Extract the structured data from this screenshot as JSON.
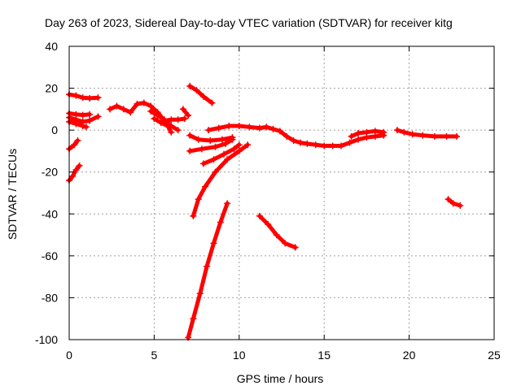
{
  "chart_data": {
    "type": "scatter",
    "title": "Day 263 of 2023, Sidereal Day-to-day VTEC variation (SDTVAR) for receiver kitg",
    "xlabel": "GPS time / hours",
    "ylabel": "SDTVAR / TECUs",
    "xlim": [
      0,
      25
    ],
    "ylim": [
      -100,
      40
    ],
    "xticks": [
      0,
      5,
      10,
      15,
      20,
      25
    ],
    "yticks": [
      -100,
      -80,
      -60,
      -40,
      -20,
      0,
      20,
      40
    ],
    "grid": true,
    "marker": "plus",
    "color": "#ff0000",
    "series": [
      {
        "points": [
          [
            0.0,
            17
          ],
          [
            0.4,
            16.5
          ],
          [
            0.8,
            15.5
          ],
          [
            1.2,
            15.2
          ],
          [
            1.7,
            15.5
          ]
        ]
      },
      {
        "points": [
          [
            0.0,
            8
          ],
          [
            0.4,
            7.5
          ],
          [
            0.8,
            7.2
          ],
          [
            1.2,
            7.5
          ]
        ]
      },
      {
        "points": [
          [
            0.0,
            6
          ],
          [
            0.4,
            5
          ],
          [
            0.8,
            4
          ],
          [
            1.2,
            4.5
          ],
          [
            1.7,
            6.5
          ]
        ]
      },
      {
        "points": [
          [
            0.0,
            4
          ],
          [
            0.4,
            3
          ],
          [
            0.8,
            2
          ],
          [
            1.0,
            1.5
          ]
        ]
      },
      {
        "points": [
          [
            0.0,
            -9
          ],
          [
            0.3,
            -7
          ],
          [
            0.5,
            -5
          ]
        ]
      },
      {
        "points": [
          [
            0.0,
            -24
          ],
          [
            0.2,
            -22
          ],
          [
            0.4,
            -19
          ],
          [
            0.6,
            -17
          ]
        ]
      },
      {
        "points": [
          [
            2.4,
            10
          ],
          [
            2.8,
            11.5
          ],
          [
            3.2,
            10
          ],
          [
            3.6,
            8.5
          ],
          [
            4.0,
            12.5
          ],
          [
            4.4,
            13
          ],
          [
            4.8,
            11.5
          ],
          [
            5.2,
            8.5
          ],
          [
            5.6,
            4.5
          ],
          [
            6.0,
            5
          ],
          [
            6.4,
            5
          ],
          [
            6.8,
            5.5
          ]
        ]
      },
      {
        "points": [
          [
            4.8,
            9
          ],
          [
            5.2,
            7
          ],
          [
            5.6,
            5
          ],
          [
            6.0,
            2
          ],
          [
            6.4,
            0
          ]
        ]
      },
      {
        "points": [
          [
            5.0,
            5.5
          ],
          [
            5.4,
            3.5
          ],
          [
            5.8,
            2
          ],
          [
            6.0,
            -1
          ]
        ]
      },
      {
        "points": [
          [
            6.7,
            10
          ],
          [
            7.0,
            7
          ]
        ]
      },
      {
        "points": [
          [
            7.1,
            21
          ],
          [
            7.5,
            19
          ],
          [
            7.9,
            16
          ],
          [
            8.4,
            13
          ]
        ]
      },
      {
        "points": [
          [
            7.1,
            -2.5
          ],
          [
            7.6,
            -4.5
          ],
          [
            8.3,
            -5
          ],
          [
            9.0,
            -4.5
          ],
          [
            9.6,
            -3.5
          ]
        ]
      },
      {
        "points": [
          [
            7.1,
            -10
          ],
          [
            7.8,
            -9
          ],
          [
            8.6,
            -8
          ],
          [
            9.2,
            -6.5
          ],
          [
            9.6,
            -4.5
          ]
        ]
      },
      {
        "points": [
          [
            7.9,
            -16
          ],
          [
            8.5,
            -14
          ],
          [
            9.1,
            -11.5
          ],
          [
            9.7,
            -9
          ],
          [
            10.0,
            -7
          ]
        ]
      },
      {
        "points": [
          [
            7.3,
            -41
          ],
          [
            7.6,
            -33
          ],
          [
            8.0,
            -27
          ],
          [
            8.6,
            -20
          ],
          [
            9.3,
            -14
          ],
          [
            10.0,
            -10
          ],
          [
            10.5,
            -7
          ]
        ]
      },
      {
        "points": [
          [
            7.0,
            -99
          ],
          [
            7.3,
            -90
          ],
          [
            7.7,
            -78
          ],
          [
            8.1,
            -65
          ],
          [
            8.5,
            -54
          ],
          [
            8.9,
            -44
          ],
          [
            9.3,
            -35
          ]
        ]
      },
      {
        "points": [
          [
            8.2,
            0
          ],
          [
            8.8,
            1
          ],
          [
            9.4,
            2
          ],
          [
            10.0,
            2
          ],
          [
            10.6,
            1.5
          ],
          [
            11.2,
            1
          ],
          [
            11.6,
            1.5
          ],
          [
            12.0,
            0.5
          ],
          [
            12.4,
            -0.5
          ],
          [
            12.8,
            -3
          ],
          [
            13.2,
            -5
          ],
          [
            13.6,
            -6
          ],
          [
            14.0,
            -6.5
          ],
          [
            14.5,
            -7
          ],
          [
            15.0,
            -7.5
          ],
          [
            15.5,
            -7.5
          ],
          [
            16.0,
            -7.5
          ],
          [
            16.5,
            -6
          ],
          [
            17.0,
            -4.5
          ],
          [
            17.5,
            -3.5
          ],
          [
            18.0,
            -3
          ],
          [
            18.5,
            -2.5
          ]
        ]
      },
      {
        "points": [
          [
            16.6,
            -3
          ],
          [
            17.0,
            -1.5
          ],
          [
            17.5,
            -1
          ],
          [
            18.0,
            -0.5
          ],
          [
            18.5,
            -1
          ]
        ]
      },
      {
        "points": [
          [
            11.2,
            -41
          ],
          [
            11.7,
            -45
          ],
          [
            12.2,
            -50
          ],
          [
            12.7,
            -54
          ],
          [
            13.3,
            -56
          ]
        ]
      },
      {
        "points": [
          [
            19.3,
            0
          ],
          [
            19.7,
            -1
          ],
          [
            20.2,
            -2
          ],
          [
            20.8,
            -2.5
          ],
          [
            21.5,
            -3
          ],
          [
            22.2,
            -3
          ],
          [
            22.8,
            -3
          ]
        ]
      },
      {
        "points": [
          [
            22.3,
            -33
          ],
          [
            22.6,
            -35
          ],
          [
            23.0,
            -36
          ]
        ]
      }
    ]
  }
}
